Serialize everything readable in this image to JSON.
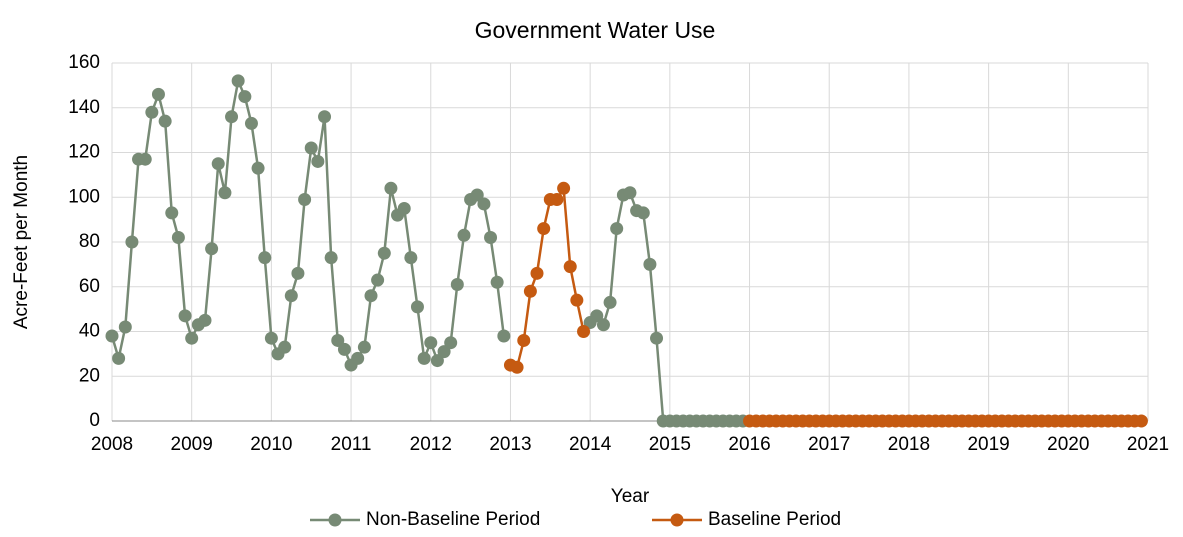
{
  "chart_data": {
    "type": "line",
    "title": "Government Water Use",
    "x_label": "Year",
    "y_label": "Acre-Feet per Month",
    "x": [
      2008,
      2008.083,
      2008.167,
      2008.25,
      2008.333,
      2008.417,
      2008.5,
      2008.583,
      2008.667,
      2008.75,
      2008.833,
      2008.917,
      2009,
      2009.083,
      2009.167,
      2009.25,
      2009.333,
      2009.417,
      2009.5,
      2009.583,
      2009.667,
      2009.75,
      2009.833,
      2009.917,
      2010,
      2010.083,
      2010.167,
      2010.25,
      2010.333,
      2010.417,
      2010.5,
      2010.583,
      2010.667,
      2010.75,
      2010.833,
      2010.917,
      2011,
      2011.083,
      2011.167,
      2011.25,
      2011.333,
      2011.417,
      2011.5,
      2011.583,
      2011.667,
      2011.75,
      2011.833,
      2011.917,
      2012,
      2012.083,
      2012.167,
      2012.25,
      2012.333,
      2012.417,
      2012.5,
      2012.583,
      2012.667,
      2012.75,
      2012.833,
      2012.917,
      2013,
      2013.083,
      2013.167,
      2013.25,
      2013.333,
      2013.417,
      2013.5,
      2013.583,
      2013.667,
      2013.75,
      2013.833,
      2013.917,
      2014,
      2014.083,
      2014.167,
      2014.25,
      2014.333,
      2014.417,
      2014.5,
      2014.583,
      2014.667,
      2014.75,
      2014.833,
      2014.917,
      2015,
      2015.083,
      2015.167,
      2015.25,
      2015.333,
      2015.417,
      2015.5,
      2015.583,
      2015.667,
      2015.75,
      2015.833,
      2015.917,
      2016,
      2016.083,
      2016.167,
      2016.25,
      2016.333,
      2016.417,
      2016.5,
      2016.583,
      2016.667,
      2016.75,
      2016.833,
      2016.917,
      2017,
      2017.083,
      2017.167,
      2017.25,
      2017.333,
      2017.417,
      2017.5,
      2017.583,
      2017.667,
      2017.75,
      2017.833,
      2017.917,
      2018,
      2018.083,
      2018.167,
      2018.25,
      2018.333,
      2018.417,
      2018.5,
      2018.583,
      2018.667,
      2018.75,
      2018.833,
      2018.917,
      2019,
      2019.083,
      2019.167,
      2019.25,
      2019.333,
      2019.417,
      2019.5,
      2019.583,
      2019.667,
      2019.75,
      2019.833,
      2019.917,
      2020,
      2020.083,
      2020.167,
      2020.25,
      2020.333,
      2020.417,
      2020.5,
      2020.583,
      2020.667,
      2020.75,
      2020.833,
      2020.917
    ],
    "series": [
      {
        "name": "Non-Baseline Period",
        "color": "#778a75",
        "values": [
          38,
          28,
          42,
          80,
          117,
          117,
          138,
          146,
          134,
          93,
          82,
          47,
          37,
          43,
          45,
          77,
          115,
          102,
          136,
          152,
          145,
          133,
          113,
          73,
          37,
          30,
          33,
          56,
          66,
          99,
          122,
          116,
          136,
          73,
          36,
          32,
          25,
          28,
          33,
          56,
          63,
          75,
          104,
          92,
          95,
          73,
          51,
          28,
          35,
          27,
          31,
          35,
          61,
          83,
          99,
          101,
          97,
          82,
          62,
          38,
          null,
          null,
          null,
          null,
          null,
          null,
          null,
          null,
          null,
          null,
          null,
          null,
          44,
          47,
          43,
          53,
          86,
          101,
          102,
          94,
          93,
          70,
          37,
          0,
          0,
          0,
          0,
          0,
          0,
          0,
          0,
          0,
          0,
          0,
          0,
          0,
          null,
          null,
          null,
          null,
          null,
          null,
          null,
          null,
          null,
          null,
          null,
          null,
          null,
          null,
          null,
          null,
          null,
          null,
          null,
          null,
          null,
          null,
          null,
          null,
          null,
          null,
          null,
          null,
          null,
          null,
          null,
          null,
          null,
          null,
          null,
          null,
          null,
          null,
          null,
          null,
          null,
          null,
          null,
          null,
          null,
          null,
          null,
          null,
          null,
          null,
          null,
          null,
          null,
          null,
          null,
          null,
          null,
          null,
          null,
          null
        ]
      },
      {
        "name": "Baseline Period",
        "color": "#c55a11",
        "values": [
          null,
          null,
          null,
          null,
          null,
          null,
          null,
          null,
          null,
          null,
          null,
          null,
          null,
          null,
          null,
          null,
          null,
          null,
          null,
          null,
          null,
          null,
          null,
          null,
          null,
          null,
          null,
          null,
          null,
          null,
          null,
          null,
          null,
          null,
          null,
          null,
          null,
          null,
          null,
          null,
          null,
          null,
          null,
          null,
          null,
          null,
          null,
          null,
          null,
          null,
          null,
          null,
          null,
          null,
          null,
          null,
          null,
          null,
          null,
          null,
          25,
          24,
          36,
          58,
          66,
          86,
          99,
          99,
          104,
          69,
          54,
          40,
          null,
          null,
          null,
          null,
          null,
          null,
          null,
          null,
          null,
          null,
          null,
          null,
          null,
          null,
          null,
          null,
          null,
          null,
          null,
          null,
          null,
          null,
          null,
          null,
          0,
          0,
          0,
          0,
          0,
          0,
          0,
          0,
          0,
          0,
          0,
          0,
          0,
          0,
          0,
          0,
          0,
          0,
          0,
          0,
          0,
          0,
          0,
          0,
          0,
          0,
          0,
          0,
          0,
          0,
          0,
          0,
          0,
          0,
          0,
          0,
          0,
          0,
          0,
          0,
          0,
          0,
          0,
          0,
          0,
          0,
          0,
          0,
          0,
          0,
          0,
          0,
          0,
          0,
          0,
          0,
          0,
          0,
          0,
          0
        ]
      }
    ],
    "xlim": [
      2008,
      2021
    ],
    "xticks": [
      2008,
      2009,
      2010,
      2011,
      2012,
      2013,
      2014,
      2015,
      2016,
      2017,
      2018,
      2019,
      2020,
      2021
    ],
    "ylim": [
      0,
      160
    ],
    "yticks": [
      0,
      20,
      40,
      60,
      80,
      100,
      120,
      140,
      160
    ],
    "grid": true,
    "legend": "bottom"
  }
}
